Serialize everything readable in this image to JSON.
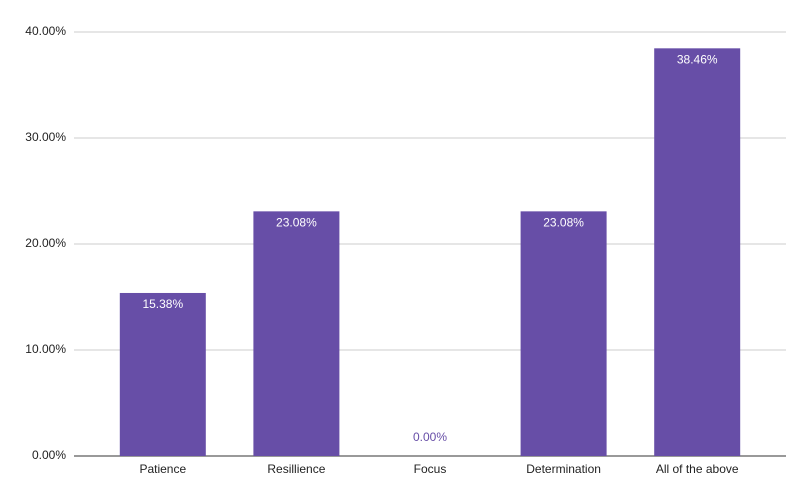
{
  "chart_data": {
    "type": "bar",
    "categories": [
      "Patience",
      "Resillience",
      "Focus",
      "Determination",
      "All of the above"
    ],
    "values": [
      15.38,
      23.08,
      0,
      23.08,
      38.46
    ],
    "value_labels": [
      "15.38%",
      "23.08%",
      "0.00%",
      "23.08%",
      "38.46%"
    ],
    "color": "#674ea7",
    "ylim": [
      0,
      40
    ],
    "yticks": [
      {
        "value": 0,
        "label": "0.00%"
      },
      {
        "value": 10,
        "label": "10.00%"
      },
      {
        "value": 20,
        "label": "20.00%"
      },
      {
        "value": 30,
        "label": "30.00%"
      },
      {
        "value": 40,
        "label": "40.00%"
      }
    ],
    "grid": true
  }
}
